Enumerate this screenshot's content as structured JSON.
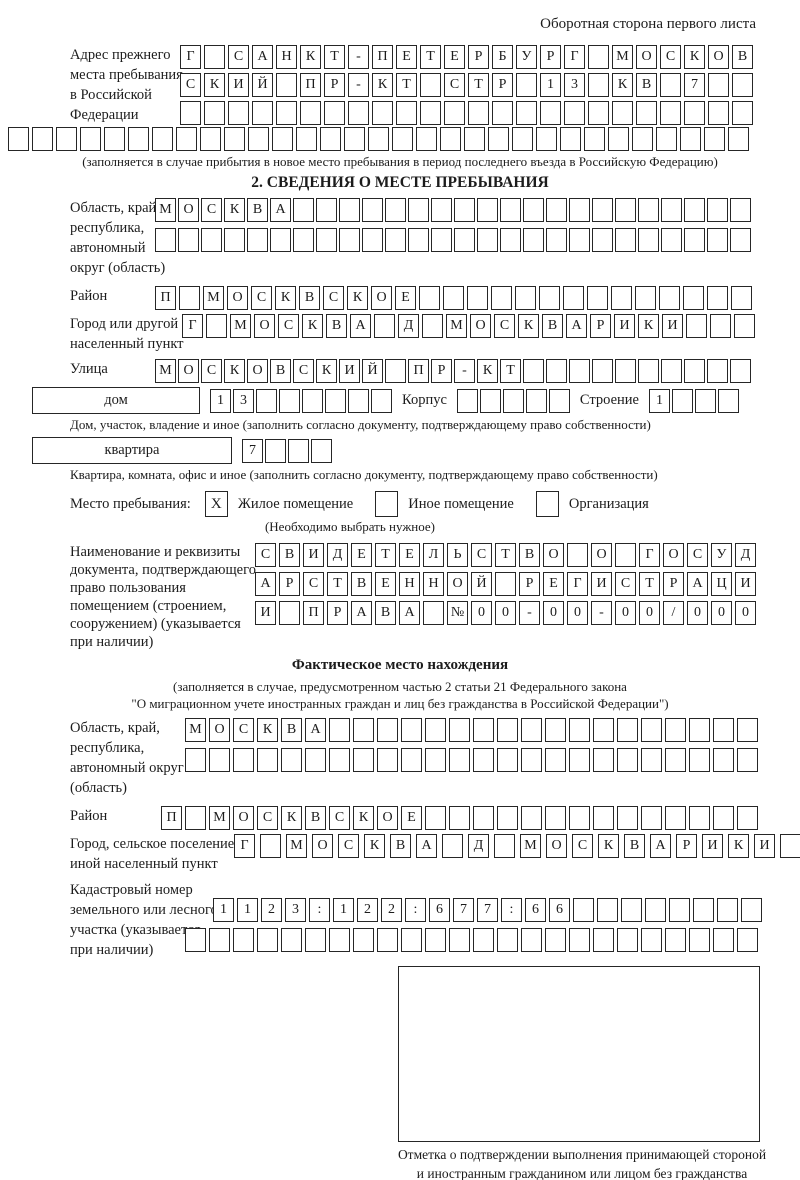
{
  "page_note": "Оборотная сторона первого листа",
  "prev_address": {
    "label_lines": [
      "Адрес прежнего",
      "места пребывания",
      "в Российской",
      "Федерации"
    ],
    "rows": [
      {
        "text": "Г САНКТ-ПЕТЕРБУРГ МОСКОВ",
        "len": 24
      },
      {
        "text": "СКИЙ ПР-КТ СТР 13 КВ 7",
        "len": 24
      },
      {
        "text": "",
        "len": 24
      },
      {
        "text": "",
        "len": 31
      }
    ],
    "caption": "(заполняется в случае прибытия в новое место пребывания в период последнего въезда в Российскую Федерацию)"
  },
  "section2": {
    "title": "2. СВЕДЕНИЯ О МЕСТЕ ПРЕБЫВАНИЯ",
    "oblast": {
      "label_lines": [
        "Область, край,",
        "республика,",
        "автономный",
        "округ (область)"
      ],
      "rows": [
        {
          "text": "МОСКВА",
          "len": 26
        },
        {
          "text": "",
          "len": 26
        }
      ]
    },
    "raion": {
      "label": "Район",
      "row": {
        "text": "П МОСКВСКОЕ",
        "len": 25
      }
    },
    "gorod": {
      "label_lines": [
        "Город или другой",
        "населенный пункт"
      ],
      "row": {
        "text": "Г МОСКВА Д МОСКВАРИКИ",
        "len": 24
      }
    },
    "ulitsa": {
      "label": "Улица",
      "row": {
        "text": "МОСКОВСКИЙ ПР-КТ",
        "len": 26
      }
    },
    "dom": {
      "box_label": "дом",
      "cells": {
        "text": "13",
        "len": 8
      },
      "korpus_label": "Корпус",
      "korpus_cells": {
        "text": "",
        "len": 5
      },
      "stroenie_label": "Строение",
      "stroenie_cells": {
        "text": "1",
        "len": 4
      },
      "caption": "Дом, участок, владение и иное (заполнить согласно документу, подтверждающему право собственности)"
    },
    "kvartira": {
      "box_label": "квартира",
      "cells": {
        "text": "7",
        "len": 4
      },
      "caption": "Квартира, комната, офис и иное (заполнить согласно документу, подтверждающему право собственности)"
    },
    "mesto": {
      "label": "Место пребывания:",
      "options": [
        {
          "label": "Жилое помещение",
          "checked": "X"
        },
        {
          "label": "Иное помещение",
          "checked": ""
        },
        {
          "label": "Организация",
          "checked": ""
        }
      ],
      "note": "(Необходимо выбрать нужное)"
    },
    "doc": {
      "label_lines": [
        "Наименование и реквизиты",
        "документа, подтверждающего",
        "право пользования",
        "помещением (строением,",
        "сооружением) (указывается",
        "при наличии)"
      ],
      "rows": [
        {
          "text": "СВИДЕТЕЛЬСТВО О ГОСУД",
          "len": 21
        },
        {
          "text": "АРСТВЕННОЙ РЕГИСТРАЦИ",
          "len": 21
        },
        {
          "text": "И ПРАВА №00-00-00/000",
          "len": 21
        }
      ]
    }
  },
  "factual": {
    "title": "Фактическое место нахождения",
    "caption_lines": [
      "(заполняется в случае, предусмотренном частью 2 статьи 21 Федерального закона",
      "\"О миграционном учете иностранных граждан и лиц без гражданства в Российской Федерации\")"
    ],
    "oblast": {
      "label_lines": [
        "Область, край,",
        "республика,",
        "автономный округ",
        "(область)"
      ],
      "rows": [
        {
          "text": "МОСКВА",
          "len": 24
        },
        {
          "text": "",
          "len": 24
        }
      ]
    },
    "raion": {
      "label": "Район",
      "row": {
        "text": "П МОСКВСКОЕ",
        "len": 25
      }
    },
    "gorod": {
      "label_lines": [
        "Город, сельское поселение,",
        "иной населенный пункт"
      ],
      "row": {
        "text": "Г МОСКВА Д МОСКВАРИКИ",
        "len": 22
      }
    },
    "kadastr": {
      "label_lines": [
        "Кадастровый номер",
        "земельного или лесного",
        "участка (указывается",
        "при наличии)"
      ],
      "rows": [
        {
          "text": "1123:122:677:66",
          "len": 23
        },
        {
          "text": "",
          "len": 24
        }
      ]
    },
    "stamp_caption": "Отметка о подтверждении выполнения принимающей стороной и иностранным гражданином или лицом без гражданства действий, необходимых для его постановки на учет по месту пребывания"
  }
}
